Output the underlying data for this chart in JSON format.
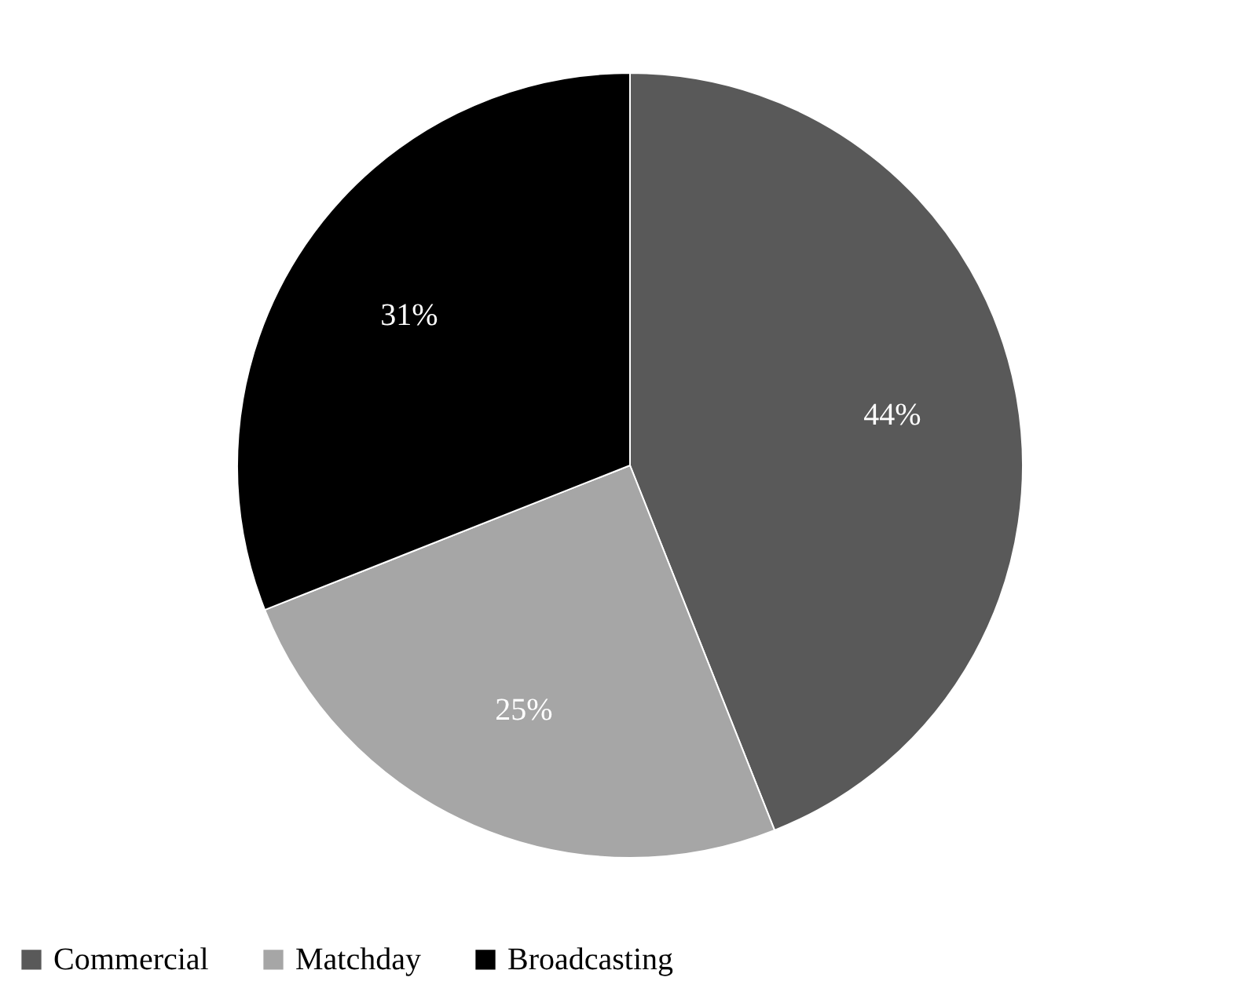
{
  "chart_data": {
    "type": "pie",
    "categories": [
      "Commercial",
      "Matchday",
      "Broadcasting"
    ],
    "values": [
      44,
      25,
      31
    ],
    "colors": [
      "#595959",
      "#a6a6a6",
      "#000000"
    ],
    "value_labels": [
      "44%",
      "25%",
      "31%"
    ],
    "legend": "bottom"
  }
}
